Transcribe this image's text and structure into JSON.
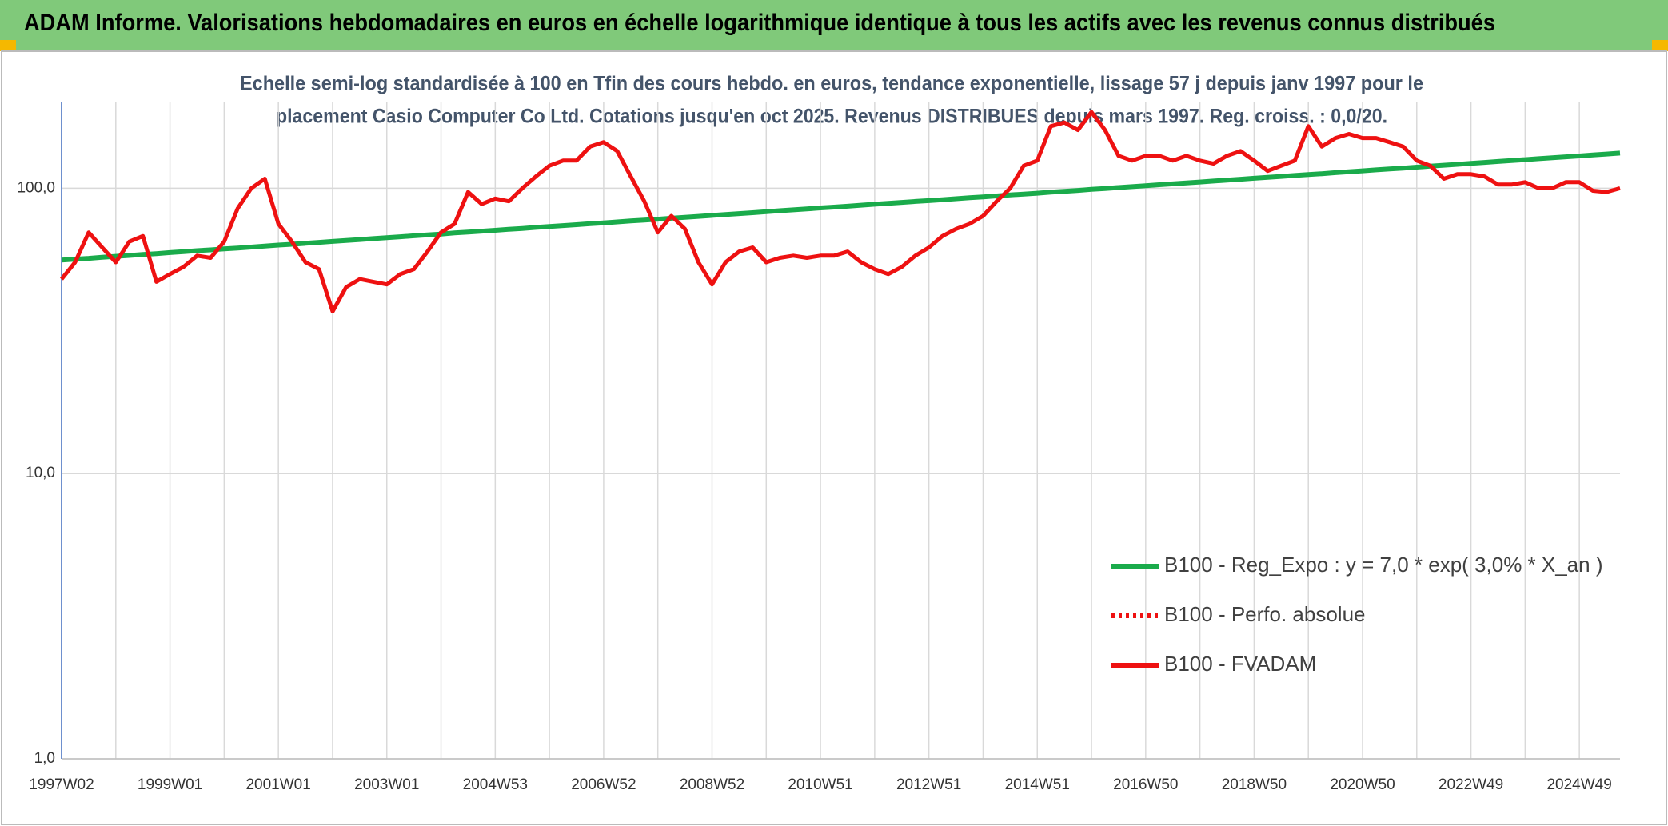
{
  "header": {
    "title": "ADAM Informe. Valorisations hebdomadaires en euros en échelle logarithmique identique à tous les actifs avec les revenus connus distribués"
  },
  "chart_data": {
    "type": "line",
    "subtitle": [
      "Echelle semi-log standardisée à 100 en Tfin des cours hebdo. en euros, tendance exponentielle, lissage 57 j depuis janv 1997 pour le",
      "placement Casio Computer Co Ltd. Cotations jusqu'en oct 2025. Revenus DISTRIBUES depuis mars 1997. Reg. croiss. : 0,0/20."
    ],
    "x": [
      "1997W02",
      null,
      null,
      null,
      null,
      null,
      null,
      null,
      "1999W01",
      null,
      null,
      null,
      null,
      null,
      null,
      null,
      "2001W01",
      null,
      null,
      null,
      null,
      null,
      null,
      null,
      "2003W01",
      null,
      null,
      null,
      null,
      null,
      null,
      null,
      "2004W53",
      null,
      null,
      null,
      null,
      null,
      null,
      null,
      "2006W52",
      null,
      null,
      null,
      null,
      null,
      null,
      null,
      "2008W52",
      null,
      null,
      null,
      null,
      null,
      null,
      null,
      "2010W51",
      null,
      null,
      null,
      null,
      null,
      null,
      null,
      "2012W51",
      null,
      null,
      null,
      null,
      null,
      null,
      null,
      "2014W51",
      null,
      null,
      null,
      null,
      null,
      null,
      null,
      "2016W50",
      null,
      null,
      null,
      null,
      null,
      null,
      null,
      "2018W50",
      null,
      null,
      null,
      null,
      null,
      null,
      null,
      "2020W50",
      null,
      null,
      null,
      null,
      null,
      null,
      null,
      "2022W49",
      null,
      null,
      null,
      null,
      null,
      null,
      null,
      "2024W49",
      null,
      null,
      null
    ],
    "series": [
      {
        "name": "B100 - Reg_Expo : y = 7,0 * exp( 3,0% *  X_an )",
        "color": "#1aab4b",
        "line_style": "solid",
        "values": [
          56.0,
          56.4,
          56.8,
          57.3,
          57.7,
          58.1,
          58.6,
          59.0,
          59.5,
          59.9,
          60.4,
          60.8,
          61.3,
          61.7,
          62.2,
          62.7,
          63.2,
          63.6,
          64.1,
          64.6,
          65.1,
          65.6,
          66.1,
          66.6,
          67.1,
          67.6,
          68.1,
          68.6,
          69.1,
          69.7,
          70.2,
          70.7,
          71.2,
          71.8,
          72.3,
          72.9,
          73.4,
          74.0,
          74.5,
          75.1,
          75.6,
          76.2,
          76.8,
          77.3,
          77.9,
          78.5,
          79.1,
          79.7,
          80.3,
          80.9,
          81.5,
          82.1,
          82.7,
          83.4,
          84.0,
          84.6,
          85.3,
          85.9,
          86.5,
          87.2,
          87.9,
          88.5,
          89.2,
          89.9,
          90.5,
          91.2,
          91.9,
          92.6,
          93.3,
          94.0,
          94.7,
          95.4,
          96.1,
          96.9,
          97.6,
          98.3,
          99.1,
          99.8,
          100.6,
          101.3,
          102.1,
          102.9,
          103.6,
          104.4,
          105.2,
          106.0,
          106.8,
          107.6,
          108.4,
          109.2,
          110.0,
          110.9,
          111.7,
          112.5,
          113.4,
          114.2,
          115.1,
          116.0,
          116.8,
          117.7,
          118.6,
          119.5,
          120.4,
          121.3,
          122.3,
          123.2,
          124.1,
          125.1,
          126.0,
          127.0,
          127.9,
          128.9,
          129.8,
          130.8,
          131.8,
          132.8
        ]
      },
      {
        "name": "B100 - Perfo. absolue",
        "color": "#ee1111",
        "line_style": "dotted",
        "values": [
          48,
          55,
          70,
          62,
          55,
          65,
          68,
          47,
          50,
          53,
          58,
          57,
          65,
          85,
          100,
          108,
          75,
          65,
          55,
          52,
          37,
          45,
          48,
          47,
          46,
          50,
          52,
          60,
          70,
          75,
          97,
          88,
          92,
          90,
          100,
          110,
          120,
          125,
          125,
          140,
          145,
          135,
          110,
          90,
          70,
          80,
          72,
          55,
          46,
          55,
          60,
          62,
          55,
          57,
          58,
          57,
          58,
          58,
          60,
          55,
          52,
          50,
          53,
          58,
          62,
          68,
          72,
          75,
          80,
          90,
          100,
          120,
          125,
          165,
          170,
          160,
          185,
          160,
          130,
          125,
          130,
          130,
          125,
          130,
          125,
          122,
          130,
          135,
          125,
          115,
          120,
          125,
          165,
          140,
          150,
          155,
          150,
          150,
          145,
          140,
          125,
          120,
          108,
          112,
          112,
          110,
          103,
          103,
          105,
          100,
          100,
          105,
          105,
          98,
          97,
          100
        ]
      },
      {
        "name": "B100 - FVADAM",
        "color": "#ee1111",
        "line_style": "solid",
        "values": [
          48,
          55,
          70,
          62,
          55,
          65,
          68,
          47,
          50,
          53,
          58,
          57,
          65,
          85,
          100,
          108,
          75,
          65,
          55,
          52,
          37,
          45,
          48,
          47,
          46,
          50,
          52,
          60,
          70,
          75,
          97,
          88,
          92,
          90,
          100,
          110,
          120,
          125,
          125,
          140,
          145,
          135,
          110,
          90,
          70,
          80,
          72,
          55,
          46,
          55,
          60,
          62,
          55,
          57,
          58,
          57,
          58,
          58,
          60,
          55,
          52,
          50,
          53,
          58,
          62,
          68,
          72,
          75,
          80,
          90,
          100,
          120,
          125,
          165,
          170,
          160,
          185,
          160,
          130,
          125,
          130,
          130,
          125,
          130,
          125,
          122,
          130,
          135,
          125,
          115,
          120,
          125,
          165,
          140,
          150,
          155,
          150,
          150,
          145,
          140,
          125,
          120,
          108,
          112,
          112,
          110,
          103,
          103,
          105,
          100,
          100,
          105,
          105,
          98,
          97,
          100
        ]
      }
    ],
    "log_scale": true,
    "ylim": [
      1,
      200
    ],
    "yticks": [
      {
        "value": 1,
        "label": "1,0"
      },
      {
        "value": 10,
        "label": "10,0"
      },
      {
        "value": 100,
        "label": "100,0"
      }
    ],
    "grid": true,
    "legend": "lower right"
  }
}
